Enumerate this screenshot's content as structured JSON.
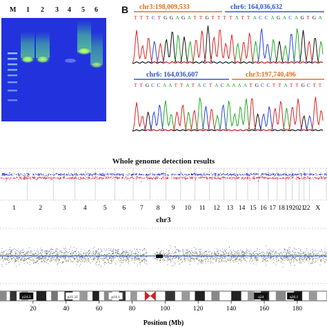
{
  "panel_a": {
    "label": "",
    "lane_labels": [
      "M",
      "1",
      "2",
      "3",
      "4",
      "5",
      "6"
    ],
    "background": "#2233dd",
    "band_color": "#aaff44",
    "band_intensity": [
      0,
      0.95,
      0.9,
      0,
      0.15,
      1.0,
      0.75
    ]
  },
  "panel_b": {
    "label": "B",
    "top": {
      "left_locus": "chr3:198,009,533",
      "right_locus": "chr6: 164,036,632",
      "sequence": "TTTCTGGAGATTGTTTTATTACCAGACAGTGA"
    },
    "bottom": {
      "left_locus": "chr6: 164,036,607",
      "right_locus": "chr3:197,740,496",
      "sequence": "TTGCCAATTATACTACAAAATGCCTTATTGCTT"
    },
    "colors": {
      "A": "#22aa22",
      "C": "#2244dd",
      "G": "#111111",
      "T": "#dd2222",
      "locus_orange": "#e07020",
      "locus_blue": "#3355cc"
    }
  },
  "genome": {
    "title": "Whole genome detection results",
    "chromosomes": [
      "1",
      "2",
      "3",
      "4",
      "5",
      "6",
      "7",
      "8",
      "9",
      "10",
      "11",
      "12",
      "13",
      "14",
      "15",
      "16",
      "17",
      "18",
      "19",
      "20",
      "21",
      "22",
      "X"
    ],
    "chromosome_label_row": "1 2 3 4 5 6 7 8 9 10 11 12 13 14 15 16 17 18 19 20 21 22 X",
    "colors": {
      "upper": "#2233cc",
      "lower": "#dd2233"
    }
  },
  "chr3_panel": {
    "title": "chr3",
    "band_labels": [
      "p24.3",
      "p21.31",
      "p14.1",
      "q24",
      "q26.1"
    ],
    "centromere_color": "#cc2222",
    "line_color": "#3366cc"
  },
  "chart_data": {
    "type": "scatter",
    "title": "chr3",
    "xlabel": "Position (Mb)",
    "ylabel": "",
    "x_ticks": [
      20,
      40,
      60,
      80,
      100,
      120,
      140,
      160,
      180
    ],
    "xlim": [
      0,
      198
    ],
    "centromere_mb": 91,
    "baseline": 0.5
  }
}
